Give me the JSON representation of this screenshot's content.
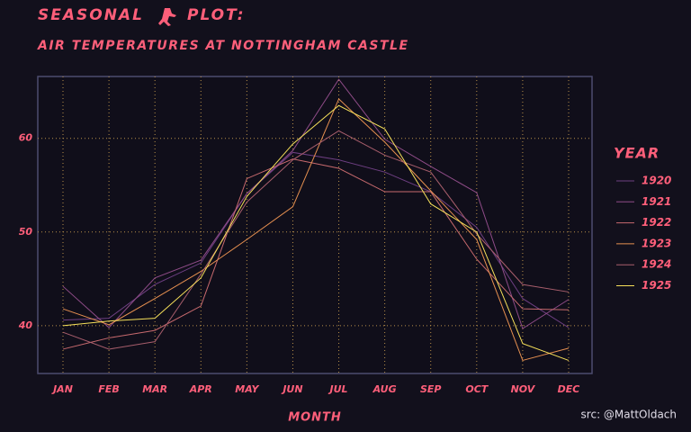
{
  "chart_data": {
    "type": "line",
    "title": "SEASONAL",
    "title_2": "PLOT:",
    "subtitle": "AIR TEMPERATURES AT NOTTINGHAM CASTLE",
    "x_label": "MONTH",
    "legend_title": "YEAR",
    "caption": "src: @MattOldach",
    "categories": [
      "JAN",
      "FEB",
      "MAR",
      "APR",
      "MAY",
      "JUN",
      "JUL",
      "AUG",
      "SEP",
      "OCT",
      "NOV",
      "DEC"
    ],
    "series": [
      {
        "name": "1920",
        "color": "#6e3f82",
        "values": [
          40.6,
          40.8,
          44.4,
          46.7,
          54.1,
          58.5,
          57.7,
          56.4,
          54.3,
          50.5,
          42.9,
          39.8
        ]
      },
      {
        "name": "1921",
        "color": "#8f4c88",
        "values": [
          44.2,
          39.8,
          45.1,
          47.0,
          54.1,
          58.7,
          66.3,
          59.9,
          57.0,
          54.2,
          39.7,
          42.8
        ]
      },
      {
        "name": "1922",
        "color": "#c86a6e",
        "values": [
          37.5,
          38.7,
          39.5,
          42.1,
          55.7,
          57.8,
          56.8,
          54.3,
          54.3,
          47.1,
          41.8,
          41.7
        ]
      },
      {
        "name": "1923",
        "color": "#e58f50",
        "values": [
          41.8,
          40.1,
          42.9,
          45.8,
          49.2,
          52.7,
          64.2,
          59.6,
          54.4,
          49.2,
          36.3,
          37.6
        ]
      },
      {
        "name": "1924",
        "color": "#a85e6c",
        "values": [
          39.3,
          37.5,
          38.3,
          45.5,
          53.2,
          57.7,
          60.8,
          58.2,
          56.4,
          49.8,
          44.4,
          43.6
        ]
      },
      {
        "name": "1925",
        "color": "#f6e05a",
        "values": [
          40.0,
          40.5,
          40.8,
          45.1,
          53.8,
          59.4,
          63.5,
          61.0,
          53.0,
          50.0,
          38.1,
          36.3
        ]
      }
    ],
    "ylim": [
      34.9,
      66.6
    ],
    "yticks": [
      40,
      50,
      60
    ],
    "grid": true,
    "legend": "right"
  }
}
